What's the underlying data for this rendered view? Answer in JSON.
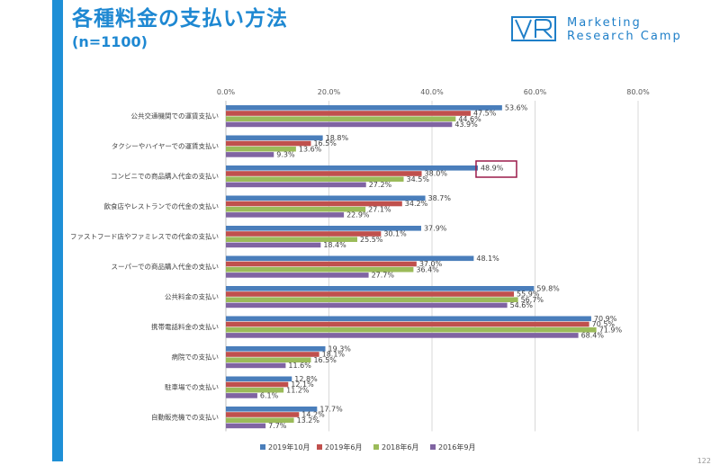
{
  "header": {
    "title": "各種料金の支払い方法",
    "subtitle": "(n=1100)"
  },
  "logo": {
    "line1": "Marketing",
    "line2": "Research Camp"
  },
  "page_number": "122",
  "colors": {
    "accent": "#1e88d2",
    "highlight_box": "#9b1b4a"
  },
  "chart_data": {
    "type": "bar",
    "orientation": "horizontal",
    "categories": [
      "公共交通機関での運賃支払い",
      "タクシーやハイヤーでの運賃支払い",
      "コンビニでの商品購入代金の支払い",
      "飲食店やレストランでの代金の支払い",
      "ファストフード店やファミレスでの代金の支払い",
      "スーパーでの商品購入代金の支払い",
      "公共料金の支払い",
      "携帯電話料金の支払い",
      "病院での支払い",
      "駐車場での支払い",
      "自動販売機での支払い"
    ],
    "series": [
      {
        "name": "2019年10月",
        "color": "#4a7ebb",
        "values": [
          53.6,
          18.8,
          48.9,
          38.7,
          37.9,
          48.1,
          59.8,
          70.9,
          19.3,
          12.8,
          17.7
        ]
      },
      {
        "name": "2019年6月",
        "color": "#c0504d",
        "values": [
          47.5,
          16.5,
          38.0,
          34.2,
          30.1,
          37.0,
          55.9,
          70.5,
          18.1,
          12.1,
          14.2
        ]
      },
      {
        "name": "2018年6月",
        "color": "#9bbb59",
        "values": [
          44.6,
          13.6,
          34.5,
          27.1,
          25.5,
          36.4,
          56.7,
          71.9,
          16.5,
          11.2,
          13.2
        ]
      },
      {
        "name": "2016年9月",
        "color": "#8064a2",
        "values": [
          43.9,
          9.3,
          27.2,
          22.9,
          18.4,
          27.7,
          54.6,
          68.4,
          11.6,
          6.1,
          7.7
        ]
      }
    ],
    "xlim": [
      0,
      80
    ],
    "xticks": [
      "0.0%",
      "20.0%",
      "40.0%",
      "60.0%",
      "80.0%"
    ],
    "grid": true,
    "legend_position": "bottom",
    "value_suffix": "%",
    "highlight": {
      "category_index": 2,
      "series_index": 0
    }
  }
}
